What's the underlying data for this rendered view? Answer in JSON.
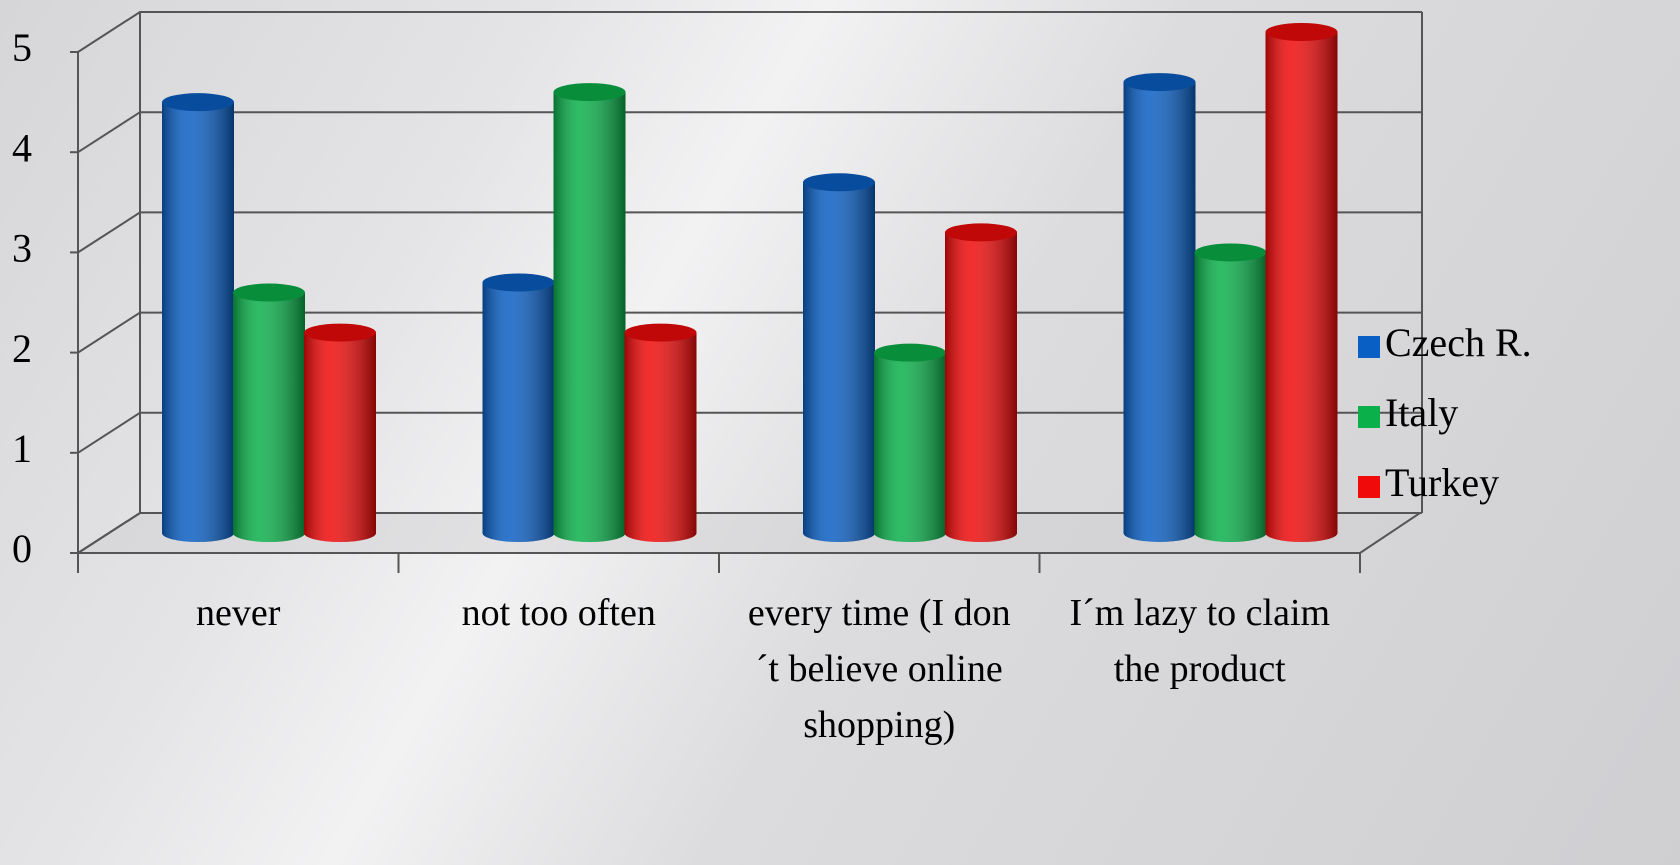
{
  "chart_data": {
    "type": "bar3d",
    "categories": [
      "never",
      "not too often",
      "every time (I don´t believe online shopping)",
      "I´m lazy to claim the product"
    ],
    "series": [
      {
        "name": "Czech R.",
        "color": "#0a5fc4",
        "values": [
          4.3,
          2.5,
          3.5,
          4.5
        ]
      },
      {
        "name": "Italy",
        "color": "#0ab04a",
        "values": [
          2.4,
          4.4,
          1.8,
          2.8
        ]
      },
      {
        "name": "Turkey",
        "color": "#f00a0a",
        "values": [
          2.0,
          2.0,
          3.0,
          5.0
        ]
      }
    ],
    "ylim": [
      0,
      5
    ],
    "yticks": [
      0,
      1,
      2,
      3,
      4,
      5
    ],
    "grid": true,
    "legend": "right"
  }
}
